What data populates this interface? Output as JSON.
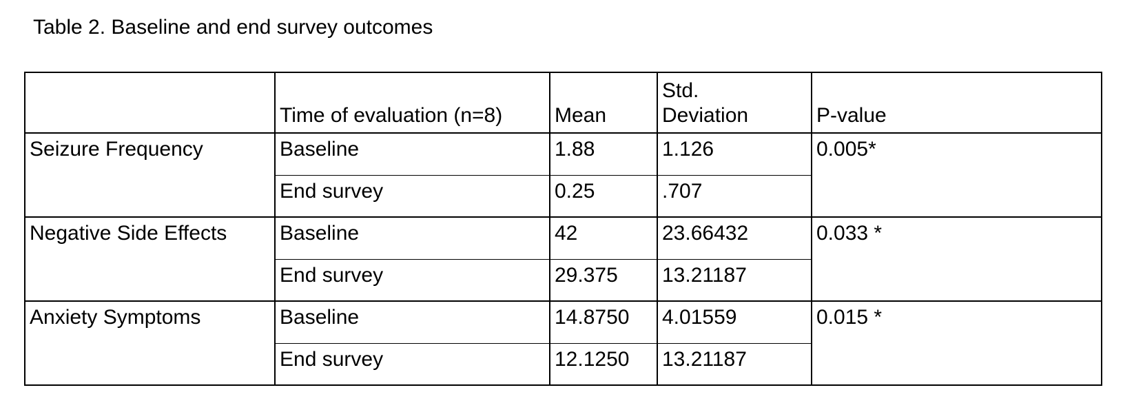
{
  "page": {
    "caption": "Table 2. Baseline and end survey outcomes"
  },
  "table": {
    "columns": [
      "",
      "Time of evaluation (n=8)",
      "Mean",
      "Std.\nDeviation",
      "P-value"
    ],
    "groups": [
      {
        "label": "Seizure Frequency",
        "p_value": "0.005*",
        "rows": [
          {
            "time": "Baseline",
            "mean": "1.88",
            "std": "1.126"
          },
          {
            "time": "End survey",
            "mean": "0.25",
            "std": ".707"
          }
        ]
      },
      {
        "label": "Negative Side Effects",
        "p_value": "0.033 *",
        "rows": [
          {
            "time": "Baseline",
            "mean": "42",
            "std": "23.66432"
          },
          {
            "time": "End survey",
            "mean": "29.375",
            "std": "13.21187"
          }
        ]
      },
      {
        "label": "Anxiety Symptoms",
        "p_value": "0.015 *",
        "rows": [
          {
            "time": "Baseline",
            "mean": "14.8750",
            "std": "4.01559"
          },
          {
            "time": "End survey",
            "mean": "12.1250",
            "std": "13.21187"
          }
        ]
      }
    ]
  }
}
